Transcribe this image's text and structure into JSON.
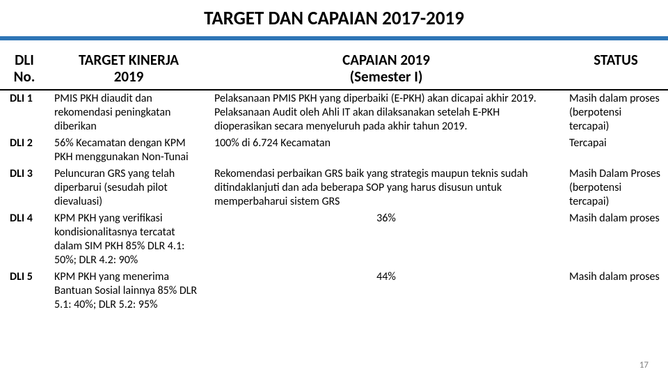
{
  "title": "TARGET DAN CAPAIAN 2017-2019",
  "columns": {
    "c1a": "DLI",
    "c1b": "No.",
    "c2a": "TARGET KINERJA",
    "c2b": "2019",
    "c3a": "CAPAIAN 2019",
    "c3b": "(Semester I)",
    "c4": "STATUS"
  },
  "rows": [
    {
      "dli": "DLI 1",
      "target": "PMIS PKH diaudit dan rekomendasi peningkatan diberikan",
      "capaian": "Pelaksanaan PMIS PKH yang diperbaiki (E-PKH) akan dicapai akhir 2019. Pelaksanaan Audit oleh Ahli IT akan dilaksanakan setelah E-PKH dioperasikan secara menyeluruh pada akhir tahun 2019.",
      "status": "Masih dalam proses (berpotensi tercapai)",
      "capaian_center": false
    },
    {
      "dli": "DLI 2",
      "target": "56% Kecamatan dengan KPM PKH menggunakan Non-Tunai",
      "capaian": "100% di 6.724 Kecamatan",
      "status": "Tercapai",
      "capaian_center": false
    },
    {
      "dli": "DLI 3",
      "target": "Peluncuran GRS yang telah diperbarui (sesudah pilot dievaluasi)",
      "capaian": "Rekomendasi perbaikan GRS baik yang strategis maupun teknis sudah ditindaklanjuti dan ada beberapa SOP yang harus disusun untuk memperbaharui sistem GRS",
      "status": "Masih Dalam Proses (berpotensi tercapai)",
      "capaian_center": false
    },
    {
      "dli": "DLI 4",
      "target": "KPM PKH yang verifikasi kondisionalitasnya tercatat dalam SIM PKH 85% DLR 4.1: 50%; DLR 4.2: 90%",
      "capaian": "36%",
      "status": "Masih dalam proses",
      "capaian_center": true
    },
    {
      "dli": "DLI 5",
      "target": "KPM PKH yang menerima Bantuan Sosial lainnya 85% DLR 5.1: 40%; DLR 5.2: 95%",
      "capaian": "44%",
      "status": "Masih dalam proses",
      "capaian_center": true
    }
  ],
  "page_number": "17",
  "colors": {
    "accent": "#2e75b6",
    "text": "#000000",
    "pagenum": "#808080",
    "background": "#ffffff"
  }
}
